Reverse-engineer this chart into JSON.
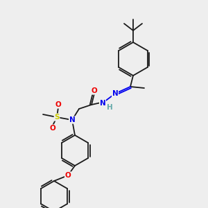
{
  "background_color": "#eeeeee",
  "bond_color": "#1a1a1a",
  "atom_colors": {
    "N": "#0000ee",
    "O": "#ee0000",
    "S": "#cccc00",
    "H": "#66aaaa",
    "C": "#1a1a1a"
  },
  "figsize": [
    3.0,
    3.0
  ],
  "dpi": 100,
  "lw": 1.3,
  "fontsize": 7.5
}
